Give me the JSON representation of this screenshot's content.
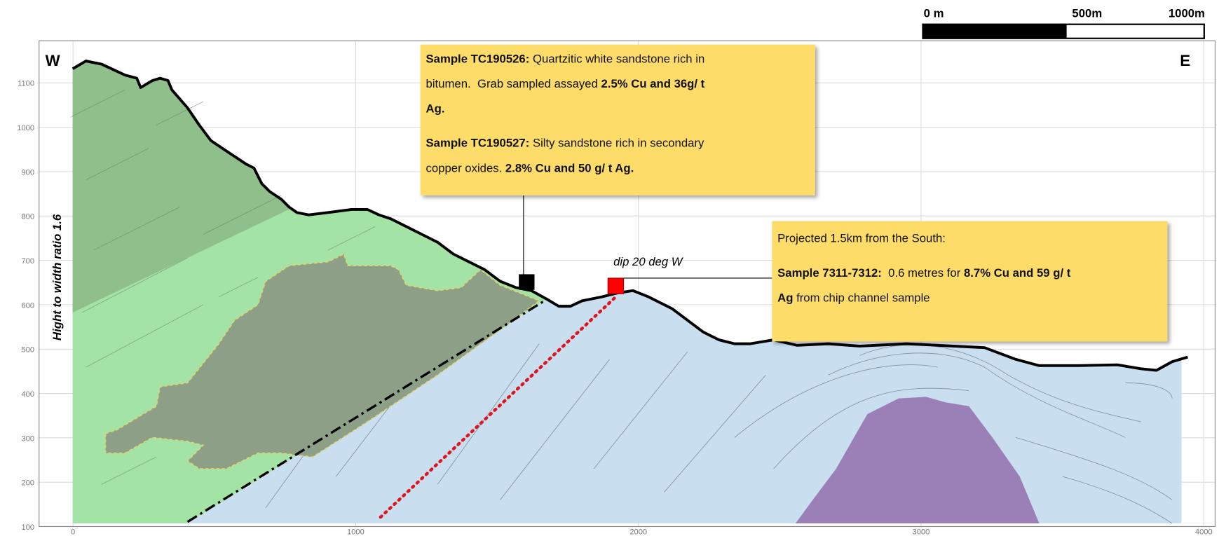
{
  "scale_bar": {
    "labels": [
      "0 m",
      "500m",
      "1000m"
    ]
  },
  "section": {
    "west": "W",
    "east": "E",
    "y_label": "Hight to width ratio 1.6",
    "xlim": [
      -120,
      4040
    ],
    "ylim": [
      100,
      1195
    ],
    "xticks": [
      0,
      1000,
      2000,
      3000,
      4000
    ],
    "yticks": [
      100,
      200,
      300,
      400,
      500,
      600,
      700,
      800,
      900,
      1000,
      1100
    ],
    "grid": true
  },
  "dip_label": "dip 20 deg W",
  "callouts": [
    {
      "paragraphs": [
        [
          [
            {
              "text": "Sample TC190526:",
              "bold": true
            },
            {
              "text": " Quartzitic white sandstone rich in"
            }
          ],
          [
            {
              "text": "bitumen.  Grab sampled assayed "
            },
            {
              "text": "2.5% Cu and 36g/ t",
              "bold": true
            }
          ],
          [
            {
              "text": "Ag.",
              "bold": true
            }
          ]
        ],
        [
          [
            {
              "text": "Sample TC190527:",
              "bold": true
            },
            {
              "text": " Silty sandstone rich in secondary"
            }
          ],
          [
            {
              "text": "copper oxides. "
            },
            {
              "text": "2.8% Cu and 50 g/ t Ag.",
              "bold": true
            }
          ]
        ]
      ]
    },
    {
      "paragraphs": [
        [
          [
            {
              "text": "Projected 1.5km from the South:"
            }
          ]
        ],
        [
          [
            {
              "text": "Sample 7311-7312:",
              "bold": true
            },
            {
              "text": "  0.6 metres for "
            },
            {
              "text": "8.7% Cu and 59 g/ t",
              "bold": true
            }
          ],
          [
            {
              "text": "Ag",
              "bold": true
            },
            {
              "text": " from chip channel sample"
            }
          ]
        ]
      ]
    }
  ]
}
